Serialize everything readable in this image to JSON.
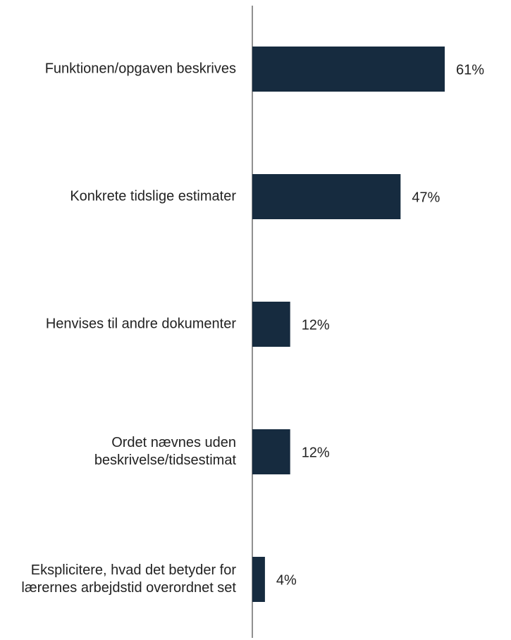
{
  "chart_data": {
    "type": "bar",
    "orientation": "horizontal",
    "categories": [
      "Funktionen/opgaven beskrives",
      "Konkrete tidslige estimater",
      "Henvises til andre dokumenter",
      "Ordet nævnes uden beskrivelse/tidsestimat",
      "Eksplicitere, hvad det betyder for lærernes arbejdstid overordnet set"
    ],
    "values": [
      61,
      47,
      12,
      12,
      4
    ],
    "value_labels": [
      "61%",
      "47%",
      "12%",
      "12%",
      "4%"
    ],
    "color": "#162b3f"
  }
}
